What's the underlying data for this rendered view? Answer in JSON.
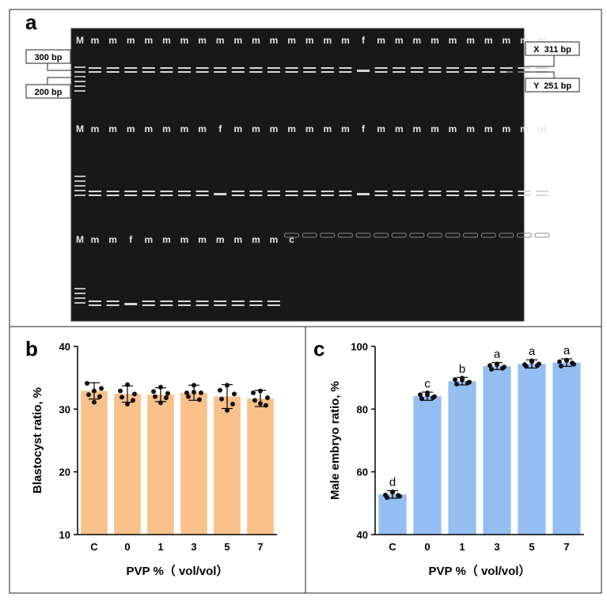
{
  "figure": {
    "panel_a_label": "a",
    "panel_b_label": "b",
    "panel_c_label": "c"
  },
  "gel": {
    "ladder_label": "M",
    "marker_300": "300 bp",
    "marker_200": "200 bp",
    "band_x": "X  311 bp",
    "band_y": "Y  251 bp",
    "row1_labels": [
      "m",
      "m",
      "m",
      "m",
      "m",
      "m",
      "m",
      "m",
      "m",
      "m",
      "m",
      "m",
      "m",
      "m",
      "m",
      "f",
      "m",
      "m",
      "m",
      "m",
      "m",
      "m",
      "m",
      "m",
      "m",
      "m"
    ],
    "row2_labels": [
      "m",
      "m",
      "m",
      "m",
      "m",
      "m",
      "m",
      "f",
      "m",
      "m",
      "m",
      "m",
      "m",
      "m",
      "m",
      "f",
      "m",
      "m",
      "m",
      "m",
      "m",
      "m",
      "m",
      "m",
      "m",
      "m"
    ],
    "row3_labels": [
      "m",
      "m",
      "f",
      "m",
      "m",
      "m",
      "m",
      "m",
      "m",
      "m",
      "m",
      "c"
    ],
    "colors": {
      "gel_bg": "#181818",
      "band": "#d8d8d8"
    }
  },
  "chart_data": [
    {
      "type": "bar",
      "panel": "b",
      "categories": [
        "C",
        "0",
        "1",
        "3",
        "5",
        "7"
      ],
      "values": [
        32.9,
        32.4,
        32.3,
        32.6,
        32.0,
        31.7
      ],
      "error": [
        1.3,
        1.3,
        1.1,
        1.2,
        1.9,
        1.3
      ],
      "points": [
        [
          32.9,
          34.1,
          33.3,
          32.3,
          32.0,
          31.1
        ],
        [
          33.9,
          32.9,
          32.4,
          31.9,
          31.4,
          30.8
        ],
        [
          33.5,
          32.8,
          32.5,
          32.0,
          31.8,
          31.0
        ],
        [
          33.8,
          32.6,
          32.6,
          32.0,
          31.5,
          32.7
        ],
        [
          33.8,
          33.0,
          32.4,
          31.6,
          30.8,
          29.8
        ],
        [
          32.9,
          32.6,
          31.8,
          31.4,
          30.6,
          30.9
        ]
      ],
      "letters": [],
      "xlabel": "PVP %（ vol/vol）",
      "ylabel": "Blastocyst ratio, %",
      "ylim": [
        10,
        40
      ],
      "yticks": [
        10,
        20,
        30,
        40
      ],
      "color": "#f9c08a"
    },
    {
      "type": "bar",
      "panel": "c",
      "categories": [
        "C",
        "0",
        "1",
        "3",
        "5",
        "7"
      ],
      "values": [
        52.8,
        84.1,
        88.9,
        93.7,
        94.4,
        94.8
      ],
      "error": [
        1.2,
        1.3,
        1.2,
        1.1,
        1.3,
        1.2
      ],
      "points": [
        [
          53.6,
          52.6,
          52.2,
          51.8,
          52.5,
          53.5
        ],
        [
          85.2,
          84.6,
          84.0,
          83.3,
          83.6,
          84.5
        ],
        [
          89.9,
          89.4,
          88.6,
          88.0,
          88.3,
          89.3
        ],
        [
          94.4,
          93.9,
          93.4,
          92.7,
          93.0,
          94.2
        ],
        [
          95.4,
          94.2,
          94.4,
          93.6,
          93.9,
          95.1
        ],
        [
          95.5,
          95.1,
          94.3,
          93.7,
          94.7,
          95.6
        ]
      ],
      "letters": [
        "d",
        "c",
        "b",
        "a",
        "a",
        "a"
      ],
      "xlabel": "PVP %（ vol/vol）",
      "ylabel": "Male embryo ratio, %",
      "ylim": [
        40,
        100
      ],
      "yticks": [
        40,
        60,
        80,
        100
      ],
      "color": "#94bdf2"
    }
  ]
}
